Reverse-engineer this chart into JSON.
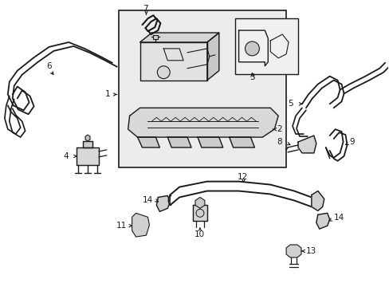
{
  "bg_color": "#ffffff",
  "line_color": "#1a1a1a",
  "fill_color": "#e8e8e8",
  "box_fill": "#ececec",
  "fig_width": 4.89,
  "fig_height": 3.6,
  "dpi": 100,
  "label_fontsize": 7.5
}
